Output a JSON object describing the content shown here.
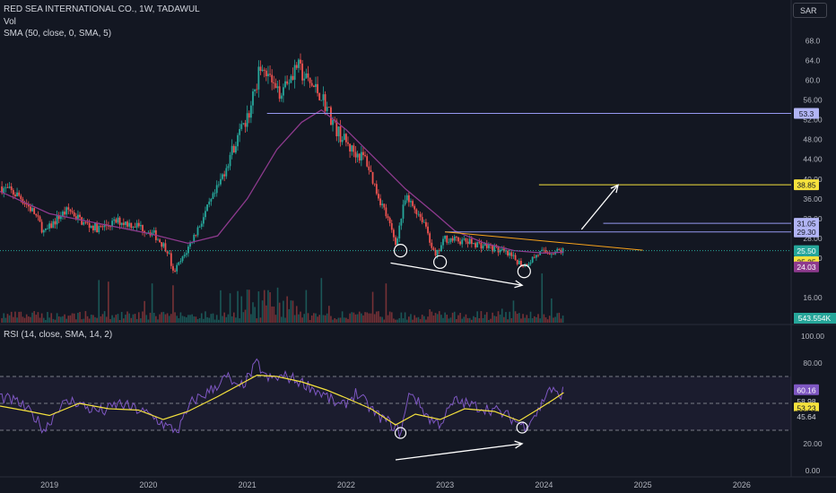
{
  "header": {
    "symbol_line": "RED SEA INTERNATIONAL CO., 1W, TADAWUL",
    "vol_label": "Vol",
    "sma_label": "SMA (50, close, 0, SMA, 5)",
    "rsi_label": "RSI (14, close, SMA, 14, 2)",
    "currency": "SAR"
  },
  "colors": {
    "background": "#131722",
    "up": "#26a69a",
    "down": "#ef5350",
    "sma": "#8e3a8e",
    "rsi": "#7e57c2",
    "rsi_ma": "#f5e23d",
    "drawing": "#ffffff",
    "level_line": "#9598f0",
    "target_line": "#f5e23d"
  },
  "chart_data": [
    {
      "type": "candlestick",
      "x_axis": {
        "tick_labels": [
          "2019",
          "2020",
          "2021",
          "2022",
          "2023",
          "2024",
          "2025",
          "2026"
        ],
        "range": [
          2018.5,
          2026.5
        ]
      },
      "y_axis": {
        "tick_labels": [
          "16.00",
          "24.00",
          "28.00",
          "32.00",
          "36.00",
          "40.00",
          "44.00",
          "48.00",
          "52.00",
          "56.00",
          "60.0",
          "64.0",
          "68.0"
        ],
        "range": [
          14,
          69
        ]
      },
      "price_path": [
        [
          2018.5,
          38.5
        ],
        [
          2018.7,
          36.5
        ],
        [
          2018.85,
          33
        ],
        [
          2018.95,
          29
        ],
        [
          2019.1,
          32.5
        ],
        [
          2019.2,
          33.8
        ],
        [
          2019.35,
          31
        ],
        [
          2019.5,
          30
        ],
        [
          2019.7,
          31.5
        ],
        [
          2019.9,
          30.5
        ],
        [
          2020.05,
          29
        ],
        [
          2020.2,
          25.5
        ],
        [
          2020.25,
          21
        ],
        [
          2020.35,
          24
        ],
        [
          2020.5,
          30
        ],
        [
          2020.7,
          38
        ],
        [
          2020.85,
          46
        ],
        [
          2021.0,
          52
        ],
        [
          2021.15,
          64
        ],
        [
          2021.3,
          57
        ],
        [
          2021.5,
          63
        ],
        [
          2021.6,
          60
        ],
        [
          2021.75,
          57
        ],
        [
          2021.9,
          50
        ],
        [
          2022.05,
          46
        ],
        [
          2022.2,
          44
        ],
        [
          2022.3,
          38
        ],
        [
          2022.4,
          33
        ],
        [
          2022.5,
          27
        ],
        [
          2022.6,
          36
        ],
        [
          2022.7,
          34
        ],
        [
          2022.8,
          31
        ],
        [
          2022.9,
          24
        ],
        [
          2023.0,
          28
        ],
        [
          2023.15,
          27.5
        ],
        [
          2023.3,
          27
        ],
        [
          2023.5,
          26
        ],
        [
          2023.65,
          24.5
        ],
        [
          2023.8,
          22.5
        ],
        [
          2023.95,
          25
        ],
        [
          2024.1,
          25.3
        ],
        [
          2024.2,
          25.5
        ]
      ],
      "series": [
        {
          "name": "SMA (50, close, 0, SMA, 5)",
          "points": [
            [
              2018.5,
              37.5
            ],
            [
              2019.0,
              33
            ],
            [
              2019.5,
              31
            ],
            [
              2020.0,
              29
            ],
            [
              2020.4,
              27
            ],
            [
              2020.7,
              28.5
            ],
            [
              2021.0,
              36
            ],
            [
              2021.3,
              46
            ],
            [
              2021.55,
              51.5
            ],
            [
              2021.75,
              54
            ],
            [
              2022.0,
              50
            ],
            [
              2022.3,
              44
            ],
            [
              2022.6,
              38
            ],
            [
              2022.9,
              33
            ],
            [
              2023.1,
              29.5
            ],
            [
              2023.4,
              27
            ],
            [
              2023.7,
              25.5
            ],
            [
              2024.0,
              25
            ],
            [
              2024.2,
              25.2
            ]
          ]
        }
      ],
      "price_labels": [
        "53.3",
        "38.85",
        "31.05",
        "29.30",
        "25.50",
        "3d 1h",
        "25.25",
        "24.03"
      ],
      "levels": [
        {
          "value": 53.3,
          "from": 2021.2
        },
        {
          "value": 38.85,
          "from": 2023.95,
          "color": "yellow"
        },
        {
          "value": 31.05,
          "from": 2024.6
        },
        {
          "value": 29.3,
          "from": 2023.0
        }
      ],
      "current_price": 25.5,
      "trendline": {
        "from": [
          2023.0,
          29.3
        ],
        "to": [
          2025.0,
          25.6
        ]
      },
      "annotations": {
        "circles": [
          [
            2022.55,
            25.5
          ],
          [
            2022.95,
            23.2
          ],
          [
            2023.8,
            21.3
          ]
        ],
        "arrow_down": {
          "from": [
            2022.45,
            23
          ],
          "to": [
            2023.78,
            18.5
          ]
        },
        "arrow_up": {
          "from": [
            2024.38,
            29.8
          ],
          "to": [
            2024.75,
            38.8
          ]
        }
      }
    },
    {
      "type": "bar",
      "name": "Vol",
      "value_label": "543.554K"
    },
    {
      "type": "line",
      "name": "RSI (14, close, SMA, 14, 2)",
      "y_axis": {
        "tick_labels": [
          "100.00",
          "80.00",
          "20.00",
          "0.00"
        ],
        "range": [
          0,
          100
        ]
      },
      "bands": [
        70,
        50,
        30
      ],
      "value_labels": [
        "60.16",
        "58.98",
        "53.23",
        "45.64"
      ],
      "series": [
        {
          "name": "RSI",
          "points": [
            [
              2018.5,
              55
            ],
            [
              2018.7,
              50
            ],
            [
              2018.85,
              40
            ],
            [
              2018.95,
              30
            ],
            [
              2019.1,
              48
            ],
            [
              2019.25,
              52
            ],
            [
              2019.4,
              46
            ],
            [
              2019.55,
              44
            ],
            [
              2019.7,
              50
            ],
            [
              2019.9,
              45
            ],
            [
              2020.05,
              40
            ],
            [
              2020.2,
              32
            ],
            [
              2020.3,
              30
            ],
            [
              2020.45,
              52
            ],
            [
              2020.6,
              58
            ],
            [
              2020.8,
              70
            ],
            [
              2020.9,
              60
            ],
            [
              2021.0,
              68
            ],
            [
              2021.1,
              80
            ],
            [
              2021.2,
              68
            ],
            [
              2021.4,
              70
            ],
            [
              2021.6,
              64
            ],
            [
              2021.8,
              55
            ],
            [
              2021.95,
              47
            ],
            [
              2022.1,
              58
            ],
            [
              2022.3,
              42
            ],
            [
              2022.45,
              35
            ],
            [
              2022.55,
              28
            ],
            [
              2022.65,
              60
            ],
            [
              2022.75,
              48
            ],
            [
              2022.85,
              38
            ],
            [
              2022.95,
              35
            ],
            [
              2023.1,
              52
            ],
            [
              2023.3,
              48
            ],
            [
              2023.5,
              45
            ],
            [
              2023.65,
              40
            ],
            [
              2023.8,
              33
            ],
            [
              2023.95,
              45
            ],
            [
              2024.05,
              62
            ],
            [
              2024.15,
              55
            ],
            [
              2024.2,
              60
            ]
          ]
        },
        {
          "name": "RSI MA",
          "points": [
            [
              2018.5,
              48
            ],
            [
              2018.8,
              44
            ],
            [
              2019.0,
              41
            ],
            [
              2019.3,
              50
            ],
            [
              2019.6,
              46
            ],
            [
              2019.9,
              45
            ],
            [
              2020.15,
              38
            ],
            [
              2020.4,
              44
            ],
            [
              2020.7,
              55
            ],
            [
              2020.9,
              63
            ],
            [
              2021.1,
              71
            ],
            [
              2021.3,
              70
            ],
            [
              2021.55,
              66
            ],
            [
              2021.8,
              60
            ],
            [
              2022.0,
              54
            ],
            [
              2022.25,
              46
            ],
            [
              2022.5,
              34
            ],
            [
              2022.7,
              42
            ],
            [
              2022.95,
              38
            ],
            [
              2023.2,
              46
            ],
            [
              2023.5,
              44
            ],
            [
              2023.75,
              37
            ],
            [
              2023.95,
              46
            ],
            [
              2024.1,
              53
            ],
            [
              2024.2,
              58
            ]
          ]
        }
      ],
      "annotations": {
        "circles": [
          [
            2022.55,
            28
          ],
          [
            2023.78,
            32
          ]
        ],
        "arrow_up": {
          "from": [
            2022.5,
            8
          ],
          "to": [
            2023.78,
            20
          ]
        }
      }
    }
  ]
}
